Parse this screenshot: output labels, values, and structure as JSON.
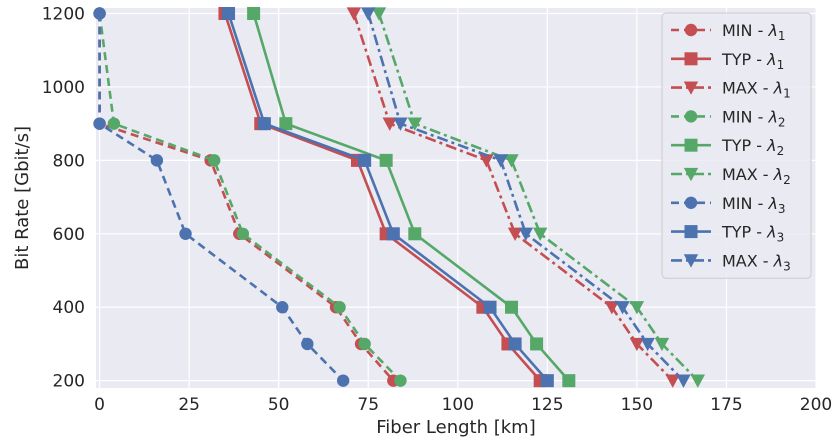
{
  "chart_data": {
    "type": "line",
    "title": "",
    "xlabel": "Fiber Length [km]",
    "ylabel": "Bit Rate [Gbit/s]",
    "xlim": [
      -1,
      200
    ],
    "ylim": [
      180,
      1215
    ],
    "xticks": [
      0,
      25,
      50,
      75,
      100,
      125,
      150,
      175,
      200
    ],
    "yticks": [
      200,
      400,
      600,
      800,
      1000,
      1200
    ],
    "grid": true,
    "legend_position": "top-right",
    "colors": {
      "red": "#c44e52",
      "green": "#55a868",
      "blue": "#4c72b0",
      "background": "#eaeaf2"
    },
    "series": [
      {
        "name": "MIN  - λ1",
        "label_main": "MIN  - ",
        "label_sub": "1",
        "color": "#c44e52",
        "dash": "dashed",
        "marker": "circle",
        "points": [
          [
            0,
            1200
          ],
          [
            0,
            900
          ],
          [
            31,
            800
          ],
          [
            39,
            600
          ],
          [
            66,
            400
          ],
          [
            73,
            300
          ],
          [
            82,
            200
          ]
        ]
      },
      {
        "name": "TYP  - λ1",
        "label_main": "TYP  - ",
        "label_sub": "1",
        "color": "#c44e52",
        "dash": "solid",
        "marker": "square",
        "points": [
          [
            35,
            1200
          ],
          [
            45,
            900
          ],
          [
            72,
            800
          ],
          [
            80,
            600
          ],
          [
            107,
            400
          ],
          [
            114,
            300
          ],
          [
            123,
            200
          ]
        ]
      },
      {
        "name": "MAX - λ1",
        "label_main": "MAX - ",
        "label_sub": "1",
        "color": "#c44e52",
        "dash": "dashdot",
        "marker": "triangle",
        "points": [
          [
            71,
            1200
          ],
          [
            81,
            900
          ],
          [
            108,
            800
          ],
          [
            116,
            600
          ],
          [
            143,
            400
          ],
          [
            150,
            300
          ],
          [
            160,
            200
          ]
        ]
      },
      {
        "name": "MIN  - λ2",
        "label_main": "MIN  - ",
        "label_sub": "2",
        "color": "#55a868",
        "dash": "dashed",
        "marker": "circle",
        "points": [
          [
            0,
            1200
          ],
          [
            4,
            900
          ],
          [
            32,
            800
          ],
          [
            40,
            600
          ],
          [
            67,
            400
          ],
          [
            74,
            300
          ],
          [
            84,
            200
          ]
        ]
      },
      {
        "name": "TYP  - λ2",
        "label_main": "TYP  - ",
        "label_sub": "2",
        "color": "#55a868",
        "dash": "solid",
        "marker": "square",
        "points": [
          [
            43,
            1200
          ],
          [
            52,
            900
          ],
          [
            80,
            800
          ],
          [
            88,
            600
          ],
          [
            115,
            400
          ],
          [
            122,
            300
          ],
          [
            131,
            200
          ]
        ]
      },
      {
        "name": "MAX - λ2",
        "label_main": "MAX - ",
        "label_sub": "2",
        "color": "#55a868",
        "dash": "dashdot",
        "marker": "triangle",
        "points": [
          [
            78,
            1200
          ],
          [
            88,
            900
          ],
          [
            115,
            800
          ],
          [
            123,
            600
          ],
          [
            150,
            400
          ],
          [
            157,
            300
          ],
          [
            167,
            200
          ]
        ]
      },
      {
        "name": "MIN  - λ3",
        "label_main": "MIN  - ",
        "label_sub": "3",
        "color": "#4c72b0",
        "dash": "dashed",
        "marker": "circle",
        "points": [
          [
            0,
            1200
          ],
          [
            0,
            900
          ],
          [
            16,
            800
          ],
          [
            24,
            600
          ],
          [
            51,
            400
          ],
          [
            58,
            300
          ],
          [
            68,
            200
          ]
        ]
      },
      {
        "name": "TYP  - λ3",
        "label_main": "TYP  - ",
        "label_sub": "3",
        "color": "#4c72b0",
        "dash": "solid",
        "marker": "square",
        "points": [
          [
            36,
            1200
          ],
          [
            46,
            900
          ],
          [
            74,
            800
          ],
          [
            82,
            600
          ],
          [
            109,
            400
          ],
          [
            116,
            300
          ],
          [
            125,
            200
          ]
        ]
      },
      {
        "name": "MAX - λ3",
        "label_main": "MAX - ",
        "label_sub": "3",
        "color": "#4c72b0",
        "dash": "dashdot",
        "marker": "triangle",
        "points": [
          [
            75,
            1200
          ],
          [
            84,
            900
          ],
          [
            112,
            800
          ],
          [
            119,
            600
          ],
          [
            146,
            400
          ],
          [
            153,
            300
          ],
          [
            163,
            200
          ]
        ]
      }
    ]
  }
}
